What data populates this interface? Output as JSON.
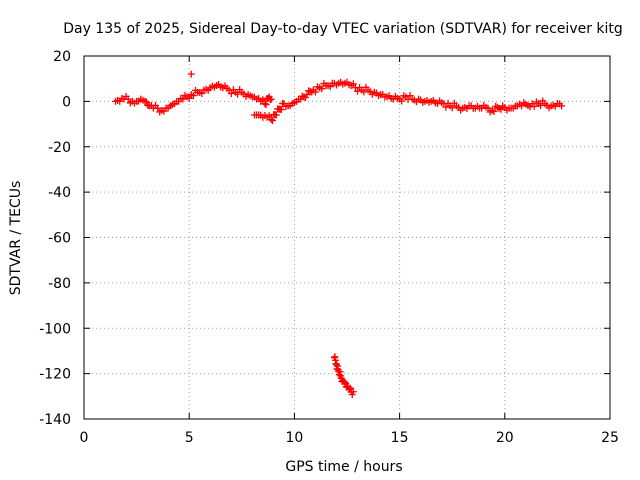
{
  "chart_data": {
    "type": "scatter",
    "title": "Day 135 of 2025, Sidereal Day-to-day VTEC variation (SDTVAR) for receiver kitg",
    "xlabel": "GPS time / hours",
    "ylabel": "SDTVAR / TECUs",
    "xlim": [
      0,
      25
    ],
    "ylim": [
      -140,
      20
    ],
    "xticks": [
      0,
      5,
      10,
      15,
      20,
      25
    ],
    "yticks": [
      20,
      0,
      -20,
      -40,
      -60,
      -80,
      -100,
      -120,
      -140
    ],
    "grid": true,
    "marker": "+",
    "color": "#ff0000",
    "series": [
      {
        "name": "SDTVAR",
        "x": [
          1.5,
          1.7,
          1.9,
          2.1,
          2.3,
          2.5,
          2.7,
          2.9,
          3.1,
          3.3,
          3.5,
          3.7,
          3.9,
          4.1,
          4.3,
          4.5,
          4.7,
          4.9,
          5.1,
          5.4,
          5.7,
          6.0,
          6.3,
          6.6,
          6.9,
          7.2,
          7.5,
          7.8,
          8.0,
          8.2,
          8.4,
          8.6,
          8.8,
          8.9,
          8.1,
          8.3,
          8.5,
          8.7,
          8.9,
          9.5,
          9.7,
          9.9,
          10.1,
          10.3,
          10.6,
          10.9,
          11.2,
          11.5,
          11.8,
          12.1,
          12.4,
          12.7,
          12.9,
          13.2,
          13.5,
          13.8,
          14.1,
          14.4,
          14.7,
          15.0,
          15.3,
          15.6,
          15.9,
          16.2,
          16.5,
          16.8,
          17.1,
          17.4,
          17.7,
          18.0,
          18.3,
          18.6,
          18.9,
          19.2,
          19.4,
          19.9,
          20.2,
          20.4,
          20.6,
          20.8,
          21.3,
          21.6,
          21.9,
          22.2,
          22.5,
          22.7,
          11.9,
          12.0,
          12.1,
          12.2,
          12.3,
          12.4,
          12.5,
          12.6,
          12.7,
          12.8,
          5.1
        ],
        "y": [
          0,
          0,
          1,
          1,
          0,
          0,
          1,
          0,
          -2,
          -3,
          -3,
          -4,
          -3,
          -2,
          -1,
          0,
          1,
          2,
          3,
          4,
          5,
          6,
          7,
          6,
          5,
          4,
          4,
          3,
          2,
          1,
          0,
          -1,
          2,
          1,
          -6,
          -6,
          -7,
          -7,
          -8,
          -1,
          -2,
          -1,
          0,
          1,
          3,
          5,
          6,
          7,
          8,
          8,
          8,
          7,
          6,
          5,
          5,
          4,
          3,
          2,
          1,
          1,
          2,
          1,
          1,
          0,
          0,
          -1,
          -1,
          -2,
          -2,
          -3,
          -2,
          -3,
          -3,
          -3,
          -4,
          -2,
          -3,
          -3,
          -2,
          -2,
          -1,
          -1,
          -1,
          -2,
          -1,
          -2,
          -113,
          -116,
          -119,
          -121,
          -123,
          -124,
          -126,
          -127,
          -128,
          -128,
          12
        ]
      }
    ]
  }
}
